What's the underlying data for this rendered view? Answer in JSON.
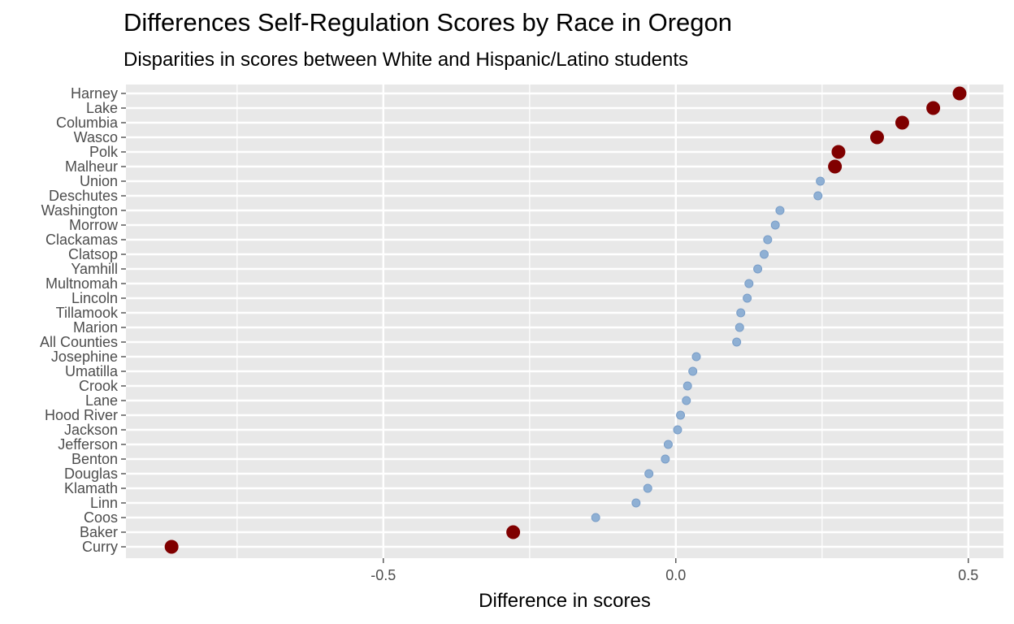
{
  "chart_data": {
    "type": "scatter",
    "title": "Differences Self-Regulation Scores by Race in Oregon",
    "subtitle": "Disparities in scores between White and Hispanic/Latino students",
    "xlabel": "Difference in scores",
    "ylabel": "",
    "xlim": [
      -0.94,
      0.56
    ],
    "x_ticks": [
      -0.5,
      0.0,
      0.5
    ],
    "x_tick_labels": [
      "-0.5",
      "0.0",
      "0.5"
    ],
    "grid": true,
    "legend": "none",
    "colors": {
      "highlight": "#800000",
      "normal": "#8fb0d4",
      "panel": "#e8e8e8",
      "grid": "#ffffff"
    },
    "categories": [
      "Harney",
      "Lake",
      "Columbia",
      "Wasco",
      "Polk",
      "Malheur",
      "Union",
      "Deschutes",
      "Washington",
      "Morrow",
      "Clackamas",
      "Clatsop",
      "Yamhill",
      "Multnomah",
      "Lincoln",
      "Tillamook",
      "Marion",
      "All Counties",
      "Josephine",
      "Umatilla",
      "Crook",
      "Lane",
      "Hood River",
      "Jackson",
      "Jefferson",
      "Benton",
      "Douglas",
      "Klamath",
      "Linn",
      "Coos",
      "Baker",
      "Curry"
    ],
    "values": [
      0.485,
      0.44,
      0.387,
      0.344,
      0.278,
      0.272,
      0.247,
      0.243,
      0.178,
      0.17,
      0.157,
      0.151,
      0.14,
      0.125,
      0.122,
      0.111,
      0.109,
      0.104,
      0.035,
      0.029,
      0.02,
      0.018,
      0.008,
      0.003,
      -0.013,
      -0.018,
      -0.046,
      -0.048,
      -0.068,
      -0.137,
      -0.278,
      -0.862
    ],
    "highlighted": [
      "Harney",
      "Lake",
      "Columbia",
      "Wasco",
      "Polk",
      "Malheur",
      "Baker",
      "Curry"
    ]
  }
}
